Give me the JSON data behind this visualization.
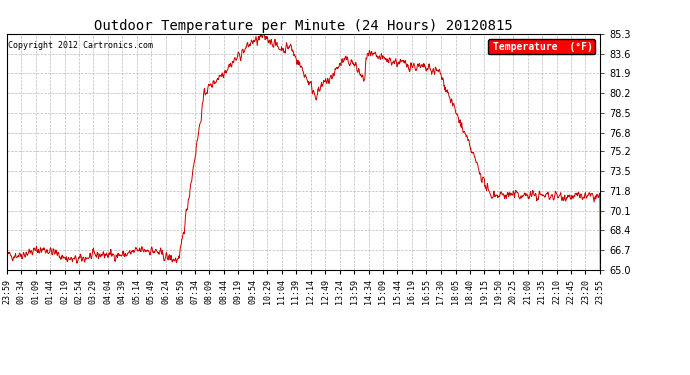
{
  "title": "Outdoor Temperature per Minute (24 Hours) 20120815",
  "copyright_text": "Copyright 2012 Cartronics.com",
  "legend_label": "Temperature  (°F)",
  "line_color": "#cc0000",
  "background_color": "#ffffff",
  "plot_bg_color": "#ffffff",
  "grid_color": "#aaaaaa",
  "yticks": [
    65.0,
    66.7,
    68.4,
    70.1,
    71.8,
    73.5,
    75.2,
    76.8,
    78.5,
    80.2,
    81.9,
    83.6,
    85.3
  ],
  "ymin": 65.0,
  "ymax": 85.3,
  "xtick_labels": [
    "23:59",
    "00:34",
    "01:09",
    "01:44",
    "02:19",
    "02:54",
    "03:29",
    "04:04",
    "04:39",
    "05:14",
    "05:49",
    "06:24",
    "06:59",
    "07:34",
    "08:09",
    "08:44",
    "09:19",
    "09:54",
    "10:29",
    "11:04",
    "11:39",
    "12:14",
    "12:49",
    "13:24",
    "13:59",
    "14:34",
    "15:09",
    "15:44",
    "16:19",
    "16:55",
    "17:30",
    "18:05",
    "18:40",
    "19:15",
    "19:50",
    "20:25",
    "21:00",
    "21:35",
    "22:10",
    "22:45",
    "23:20",
    "23:55"
  ]
}
